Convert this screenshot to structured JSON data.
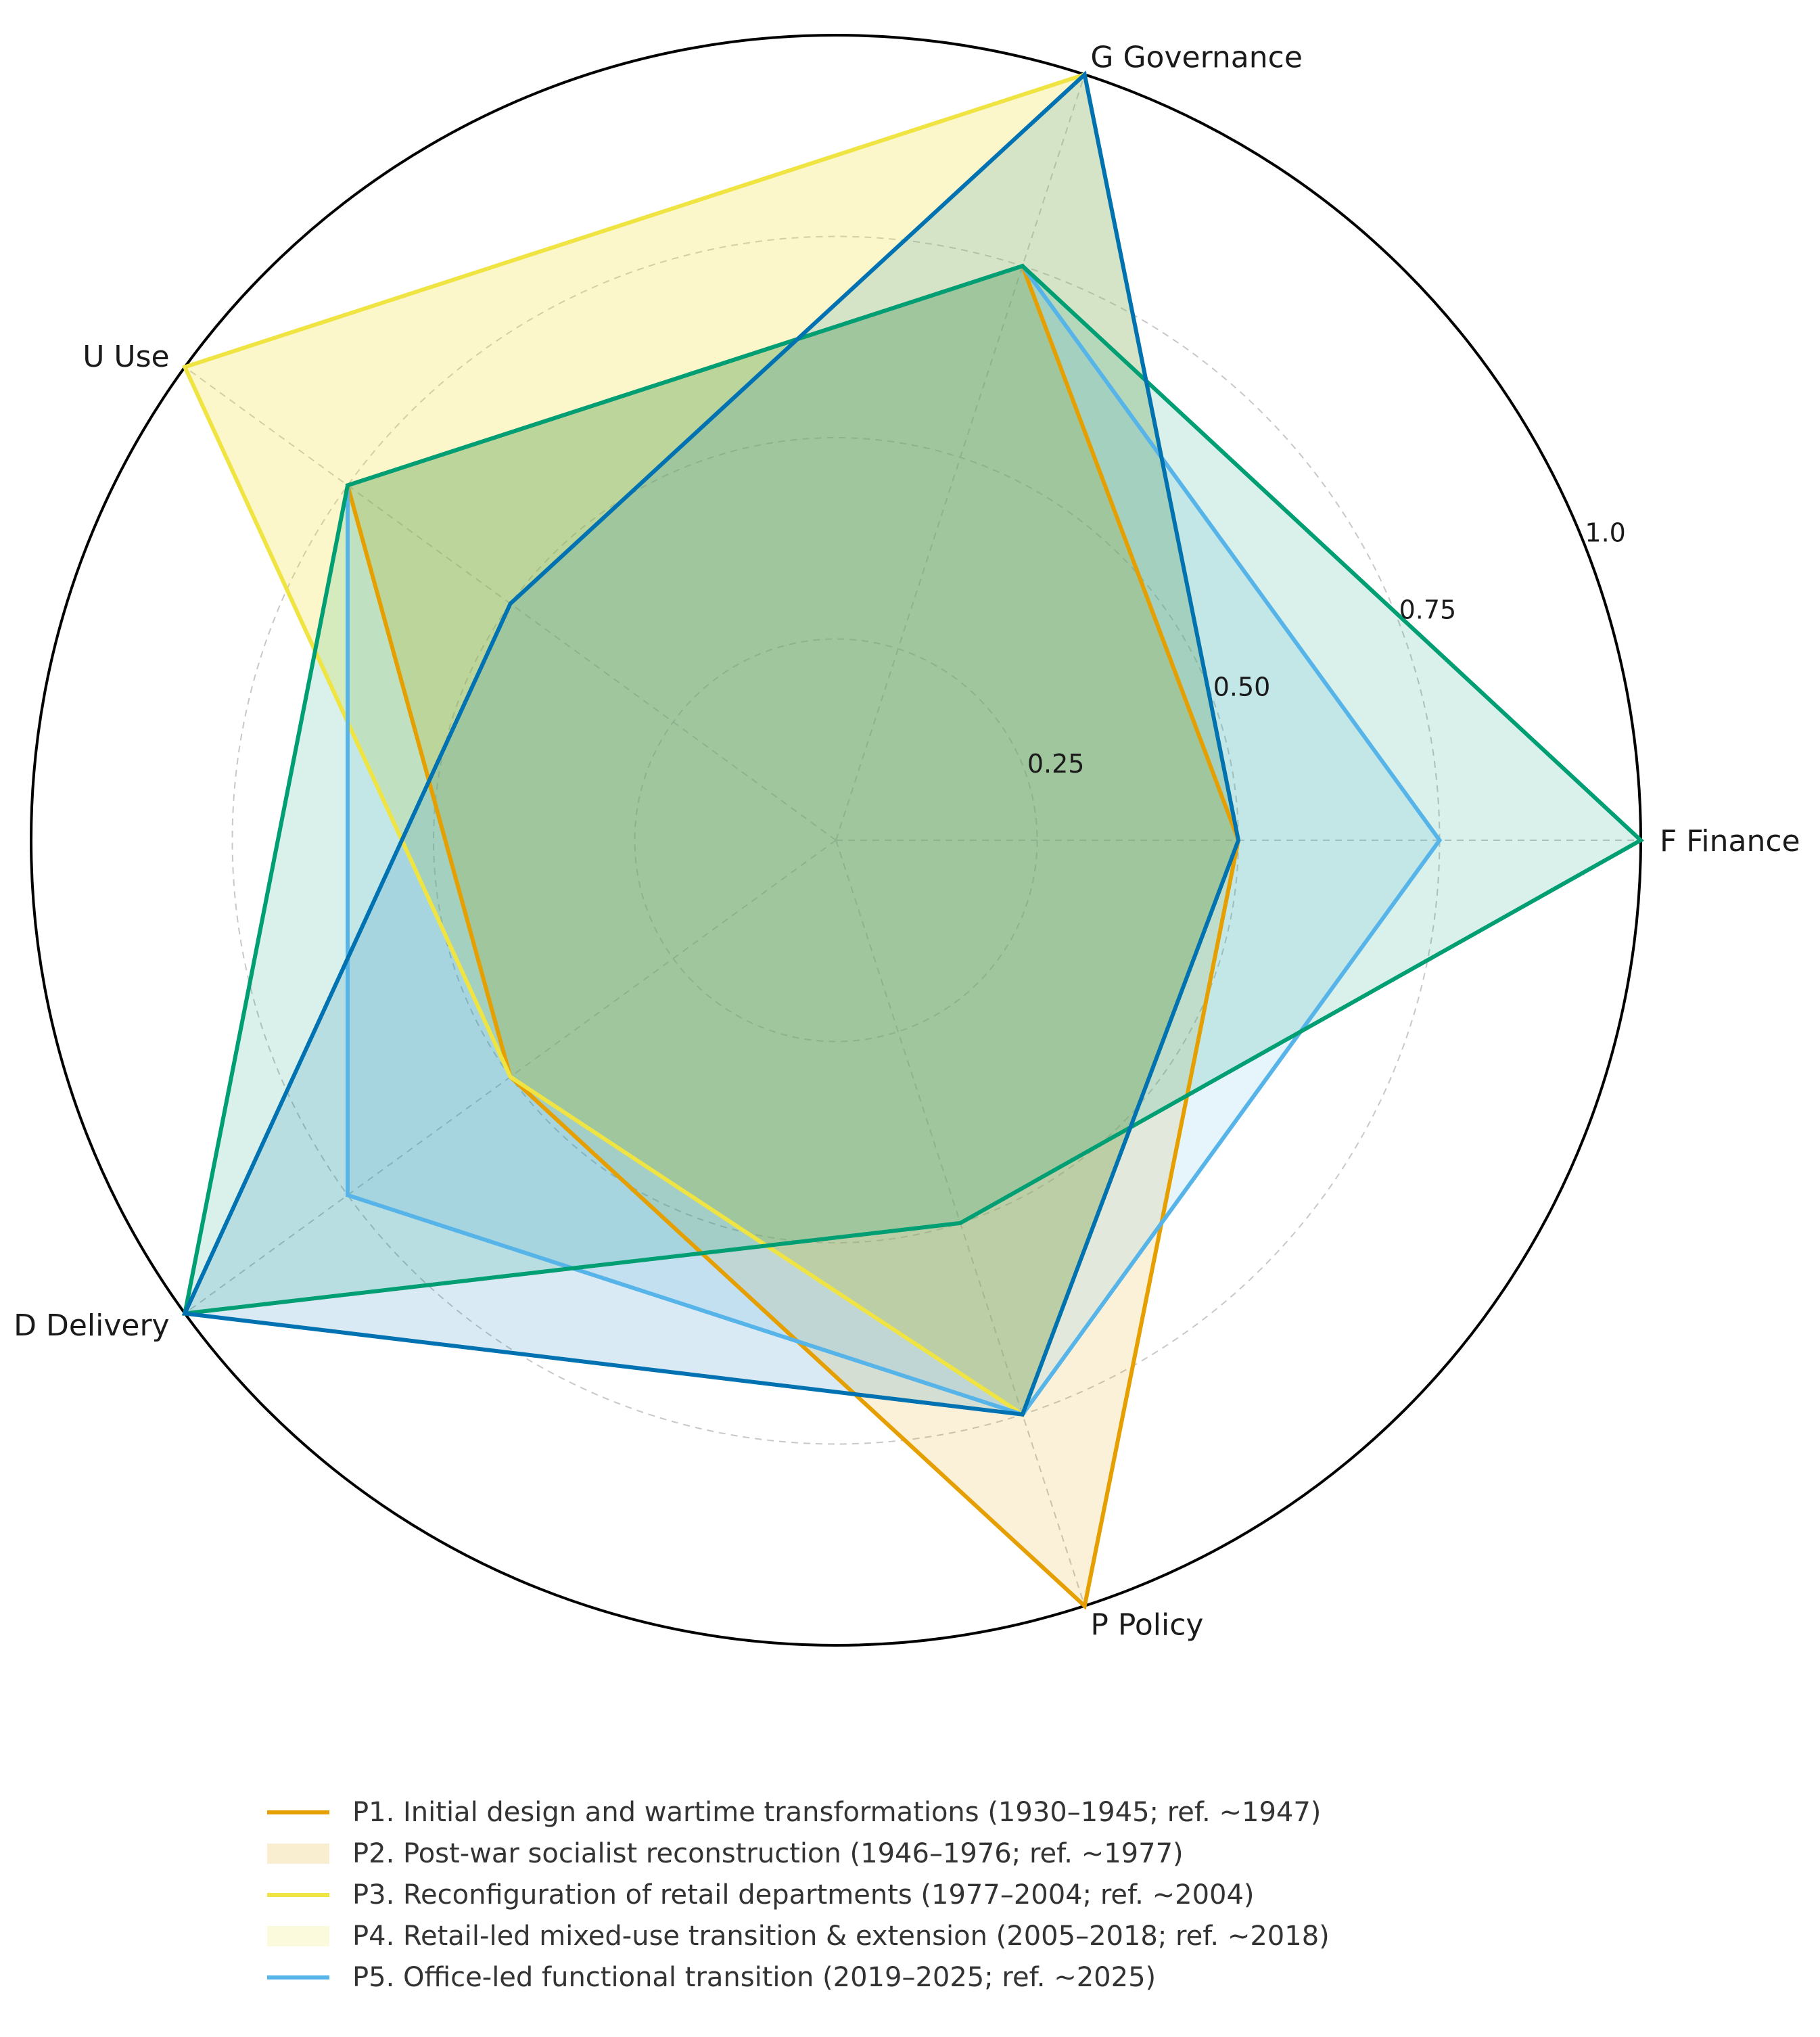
{
  "chart_data": {
    "type": "radar",
    "axes": [
      "F Finance",
      "G Governance",
      "U Use",
      "D Delivery",
      "P Policy"
    ],
    "rlim": [
      0,
      1.0
    ],
    "rticks": [
      0.25,
      0.5,
      0.75,
      1.0
    ],
    "rtick_labels": [
      "0.25",
      "0.50",
      "0.75",
      "1.0"
    ],
    "grid": true,
    "legend_position": "bottom",
    "series": [
      {
        "name": "P1. Initial design and wartime transformations (1930–1945; ref. ~1947)",
        "values": [
          0.5,
          0.75,
          0.75,
          0.5,
          1.0
        ],
        "color": "#E69F00",
        "style": "line"
      },
      {
        "name": "P2. Post-war socialist reconstruction (1946–1976; ref. ~1977)",
        "values": [
          0.5,
          0.75,
          0.75,
          0.5,
          0.75
        ],
        "color": "#E69F00",
        "style": "fill"
      },
      {
        "name": "P3. Reconfiguration of retail departments (1977–2004; ref. ~2004)",
        "values": [
          0.5,
          1.0,
          1.0,
          0.5,
          0.75
        ],
        "color": "#F0E442",
        "style": "line"
      },
      {
        "name": "P4. Retail-led mixed-use transition & extension (2005–2018; ref. ~2018)",
        "values": [
          0.5,
          1.0,
          1.0,
          0.5,
          0.75
        ],
        "color": "#F0E442",
        "style": "fill"
      },
      {
        "name": "P5. Office-led functional transition (2019–2025; ref. ~2025)",
        "values": [
          0.75,
          0.75,
          0.75,
          0.75,
          0.75
        ],
        "color": "#56B4E9",
        "style": "line"
      },
      {
        "name": "",
        "values": [
          1.0,
          0.75,
          0.75,
          1.0,
          0.5
        ],
        "color": "#009E73",
        "style": "line"
      },
      {
        "name": "",
        "values": [
          0.5,
          1.0,
          0.5,
          1.0,
          0.75
        ],
        "color": "#0072B2",
        "style": "line"
      }
    ]
  }
}
